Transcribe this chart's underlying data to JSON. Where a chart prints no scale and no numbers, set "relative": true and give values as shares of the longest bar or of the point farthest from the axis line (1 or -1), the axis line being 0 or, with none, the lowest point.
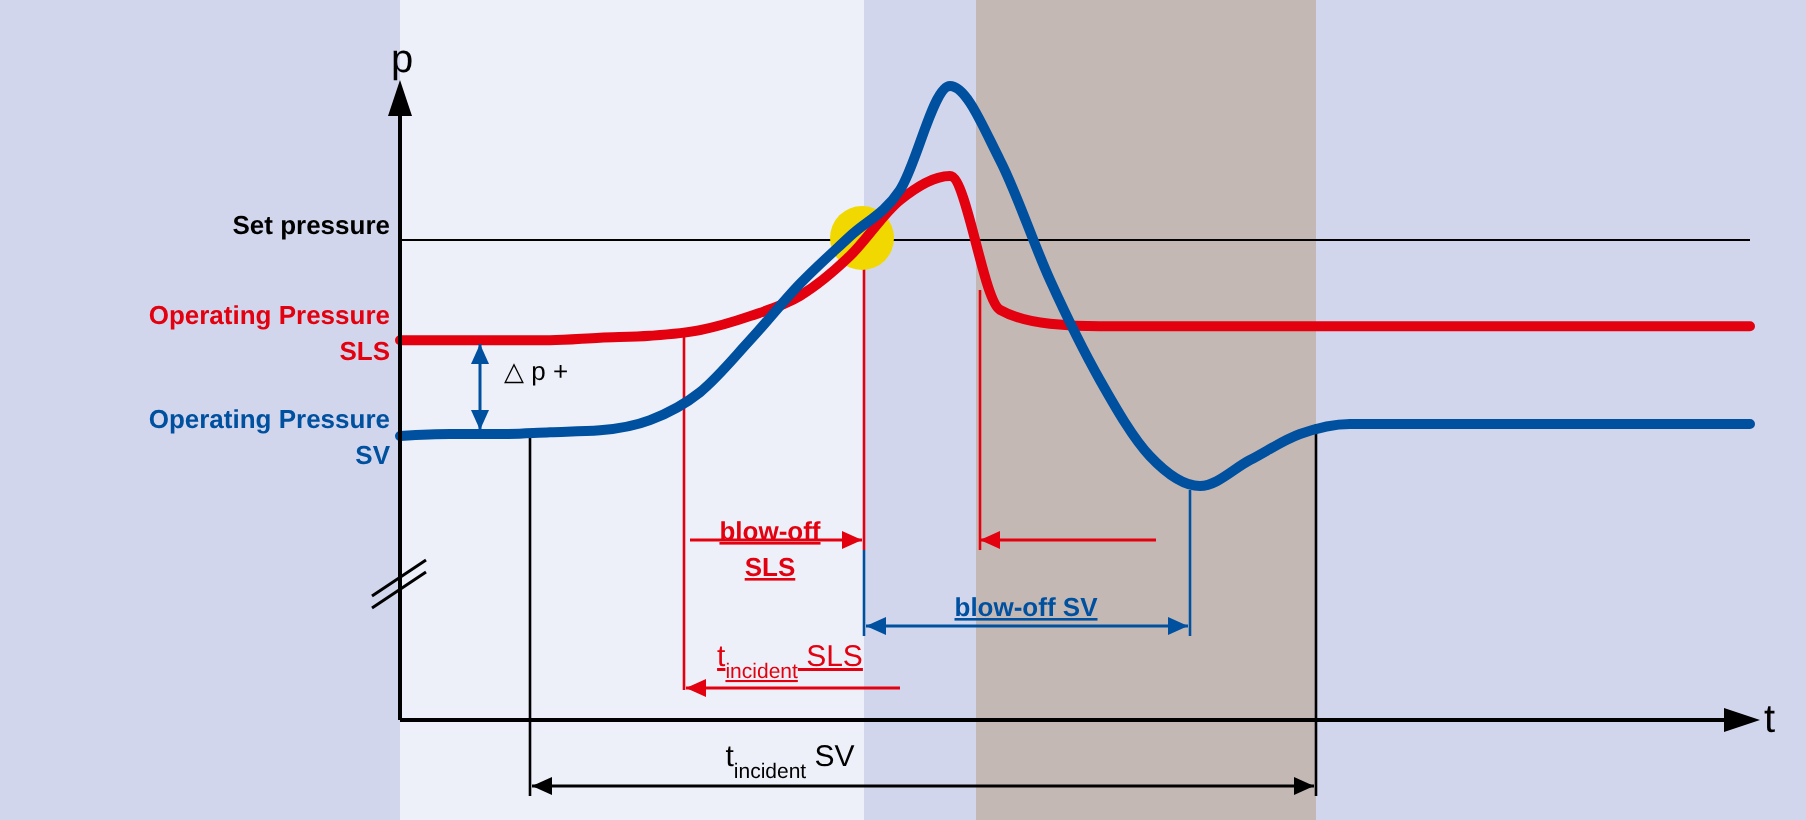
{
  "chart_data": {
    "type": "line",
    "relative": true,
    "xlabel": "t",
    "ylabel": "p",
    "legend": false,
    "marker": "none",
    "line_style": "solid",
    "categories": [
      null,
      null,
      null,
      null,
      null,
      null,
      null,
      null,
      null,
      null,
      null,
      null,
      null,
      null,
      null,
      null,
      null,
      null,
      null,
      null,
      null,
      null,
      null,
      null,
      null,
      null,
      null,
      null
    ],
    "series": [
      {
        "name": "Operating Pressure SLS",
        "color": "#e3000f",
        "values": [
          0.599,
          0.599,
          0.599,
          0.599,
          0.603,
          0.606,
          0.615,
          0.637,
          0.669,
          0.732,
          0.82,
          0.858,
          0.647,
          0.625,
          0.621,
          0.621,
          0.621,
          0.621,
          0.621,
          0.621,
          0.621,
          0.621,
          0.621,
          0.621,
          0.621,
          0.621,
          0.621,
          0.621
        ]
      },
      {
        "name": "Operating Pressure SV",
        "color": "#0050a0",
        "values": [
          0.448,
          0.451,
          0.451,
          0.454,
          0.457,
          0.473,
          0.517,
          0.599,
          0.688,
          0.763,
          0.836,
          1,
          0.883,
          0.694,
          0.536,
          0.416,
          0.369,
          0.41,
          0.451,
          0.467,
          0.467,
          0.467,
          0.467,
          0.467,
          0.467,
          0.467,
          0.467,
          0.467
        ]
      }
    ],
    "ref_lines": [
      {
        "axis": "y",
        "value": 0.757,
        "label": "Set pressure",
        "color": "#000000"
      }
    ],
    "annotations": [
      "△ p +",
      "blow-off SLS",
      "blow-off SV",
      "t$_{incident}$ SLS",
      "t$_{incident}$ SV"
    ]
  }
}
